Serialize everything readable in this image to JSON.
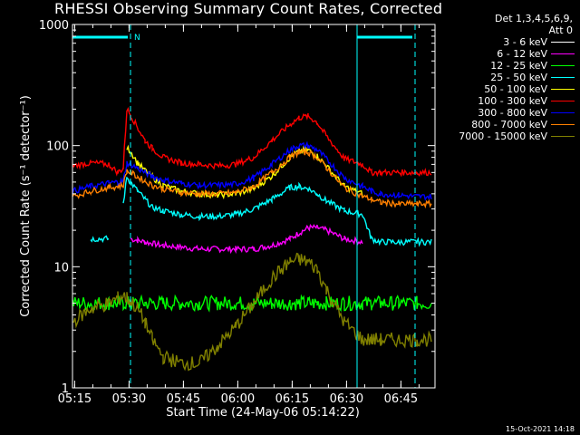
{
  "title": "RHESSI Observing Summary Count Rates, Corrected",
  "timestamp": "15-Oct-2021 14:18",
  "legend": {
    "header_line1": "Det 1,3,4,5,6,9,",
    "header_line2": "Att 0"
  },
  "colors": {
    "background": "#000000",
    "axes": "#ffffff",
    "markers": "#00ffff"
  },
  "chart_data": {
    "type": "line",
    "title": "RHESSI Observing Summary Count Rates, Corrected",
    "xlabel": "Start Time (24-May-06 05:14:22)",
    "ylabel": "Corrected Count Rate (s⁻¹ detector⁻¹)",
    "yscale": "log",
    "ylim": [
      1,
      1000
    ],
    "xlim_minutes": [
      0,
      100
    ],
    "x_ticks": [
      "05:15",
      "05:30",
      "05:45",
      "06:00",
      "06:15",
      "06:30",
      "06:45"
    ],
    "y_ticks": [
      "1",
      "10",
      "100",
      "1000"
    ],
    "x_minutes": [
      0,
      5,
      10,
      12.5,
      14,
      15,
      16,
      18,
      20,
      22,
      25,
      30,
      35,
      40,
      45,
      50,
      55,
      60,
      62.5,
      65,
      67.5,
      70,
      75,
      80,
      82.5,
      85,
      90,
      95,
      99
    ],
    "series": [
      {
        "name": "3 - 6 keV",
        "color": "#ffffff",
        "values": [
          null,
          null,
          null,
          null,
          null,
          null,
          null,
          null,
          null,
          null,
          null,
          null,
          null,
          null,
          null,
          null,
          null,
          null,
          null,
          null,
          null,
          null,
          null,
          null,
          null,
          null,
          null,
          null,
          null
        ]
      },
      {
        "name": "6 - 12 keV",
        "color": "#ff00ff",
        "values": [
          null,
          null,
          null,
          null,
          null,
          null,
          17,
          16.5,
          16,
          15.5,
          15,
          14.5,
          14,
          14,
          14,
          14,
          15,
          17,
          19,
          21,
          21,
          20,
          17,
          16,
          null,
          null,
          null,
          null,
          null
        ]
      },
      {
        "name": "12 - 25 keV",
        "color": "#00ff00",
        "values": [
          5,
          5,
          5,
          5,
          5,
          5,
          5,
          5,
          5,
          5,
          5,
          5,
          5,
          5,
          5,
          5,
          5,
          5,
          5,
          5,
          5,
          5,
          5,
          5,
          5,
          5,
          5,
          5,
          5
        ]
      },
      {
        "name": "25 - 50 keV",
        "color": "#00ffff",
        "values": [
          null,
          17,
          17,
          null,
          33,
          55,
          50,
          42,
          36,
          31,
          29,
          27,
          26,
          26,
          27,
          30,
          36,
          45,
          46,
          44,
          40,
          35,
          29,
          27,
          17,
          16,
          16,
          16,
          16
        ]
      },
      {
        "name": "50 - 100 keV",
        "color": "#ffff00",
        "values": [
          null,
          null,
          null,
          null,
          null,
          95,
          90,
          72,
          62,
          55,
          47,
          42,
          40,
          39,
          40,
          44,
          56,
          80,
          90,
          92,
          82,
          68,
          46,
          40,
          null,
          null,
          null,
          null,
          null
        ]
      },
      {
        "name": "100 - 300 keV",
        "color": "#ff0000",
        "values": [
          68,
          72,
          70,
          60,
          65,
          200,
          180,
          140,
          110,
          95,
          80,
          72,
          70,
          68,
          70,
          80,
          110,
          150,
          170,
          175,
          155,
          120,
          78,
          70,
          60,
          60,
          60,
          60,
          60
        ]
      },
      {
        "name": "300 - 800 keV",
        "color": "#0000ff",
        "values": [
          42,
          46,
          49,
          50,
          51,
          72,
          70,
          65,
          60,
          56,
          52,
          49,
          47,
          47,
          48,
          54,
          70,
          92,
          100,
          100,
          92,
          78,
          54,
          46,
          42,
          40,
          39,
          38,
          38
        ]
      },
      {
        "name": "800 - 7000 keV",
        "color": "#ff8000",
        "values": [
          38,
          42,
          45,
          46,
          47,
          62,
          60,
          55,
          51,
          47,
          44,
          41,
          40,
          40,
          41,
          46,
          60,
          80,
          88,
          88,
          80,
          66,
          45,
          38,
          36,
          34,
          33,
          33,
          33
        ]
      },
      {
        "name": "7000 - 15000 keV",
        "color": "#808000",
        "values": [
          3.5,
          4.5,
          5,
          5.5,
          5.8,
          5.5,
          5.2,
          4.5,
          3.5,
          2.5,
          1.8,
          1.6,
          1.6,
          2.2,
          3.2,
          5,
          8,
          11,
          11.5,
          11,
          9.5,
          6.5,
          3.5,
          2.5,
          2.5,
          2.5,
          2.5,
          2.5,
          2.5
        ]
      }
    ],
    "markers": [
      {
        "type": "vertical-solid",
        "x_minutes": 0
      },
      {
        "type": "vertical-dashed",
        "x_minutes": 16
      },
      {
        "type": "vertical-solid",
        "x_minutes": 78.5
      },
      {
        "type": "vertical-dashed",
        "x_minutes": 94.5
      }
    ],
    "night_bars": [
      {
        "label": "N",
        "x_start": 0,
        "x_end": 16
      },
      {
        "label": "",
        "x_start": 78.5,
        "x_end": 94.5
      }
    ]
  }
}
